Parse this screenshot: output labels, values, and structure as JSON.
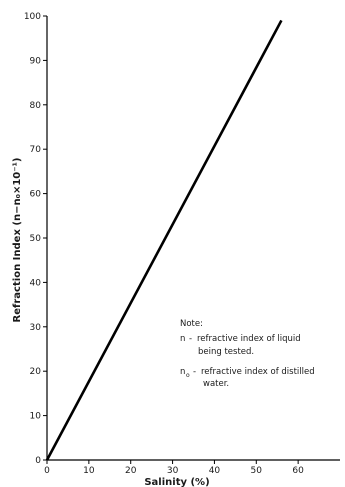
{
  "chart_data": {
    "type": "line",
    "xlabel": "Salinity (%)",
    "ylabel": "Refraction Index (n−n₀×10⁻¹)",
    "xlim": [
      0,
      70
    ],
    "ylim": [
      0,
      100
    ],
    "x_ticks": [
      "0",
      "10",
      "20",
      "30",
      "40",
      "50",
      "60"
    ],
    "y_ticks": [
      "0",
      "10",
      "20",
      "30",
      "40",
      "50",
      "60",
      "70",
      "80",
      "90",
      "100"
    ],
    "grid": false,
    "series": [
      {
        "x": [
          0,
          56
        ],
        "y": [
          0,
          99
        ],
        "color": "#000000"
      }
    ],
    "note": {
      "title": "Note:",
      "lines": [
        {
          "symbol": "n",
          "desc_line1": "refractive index of liquid",
          "desc_line2": "being tested."
        },
        {
          "symbol": "n",
          "subscript": "o",
          "desc_line1": "refractive index of distilled",
          "desc_line2": "water."
        }
      ]
    }
  }
}
